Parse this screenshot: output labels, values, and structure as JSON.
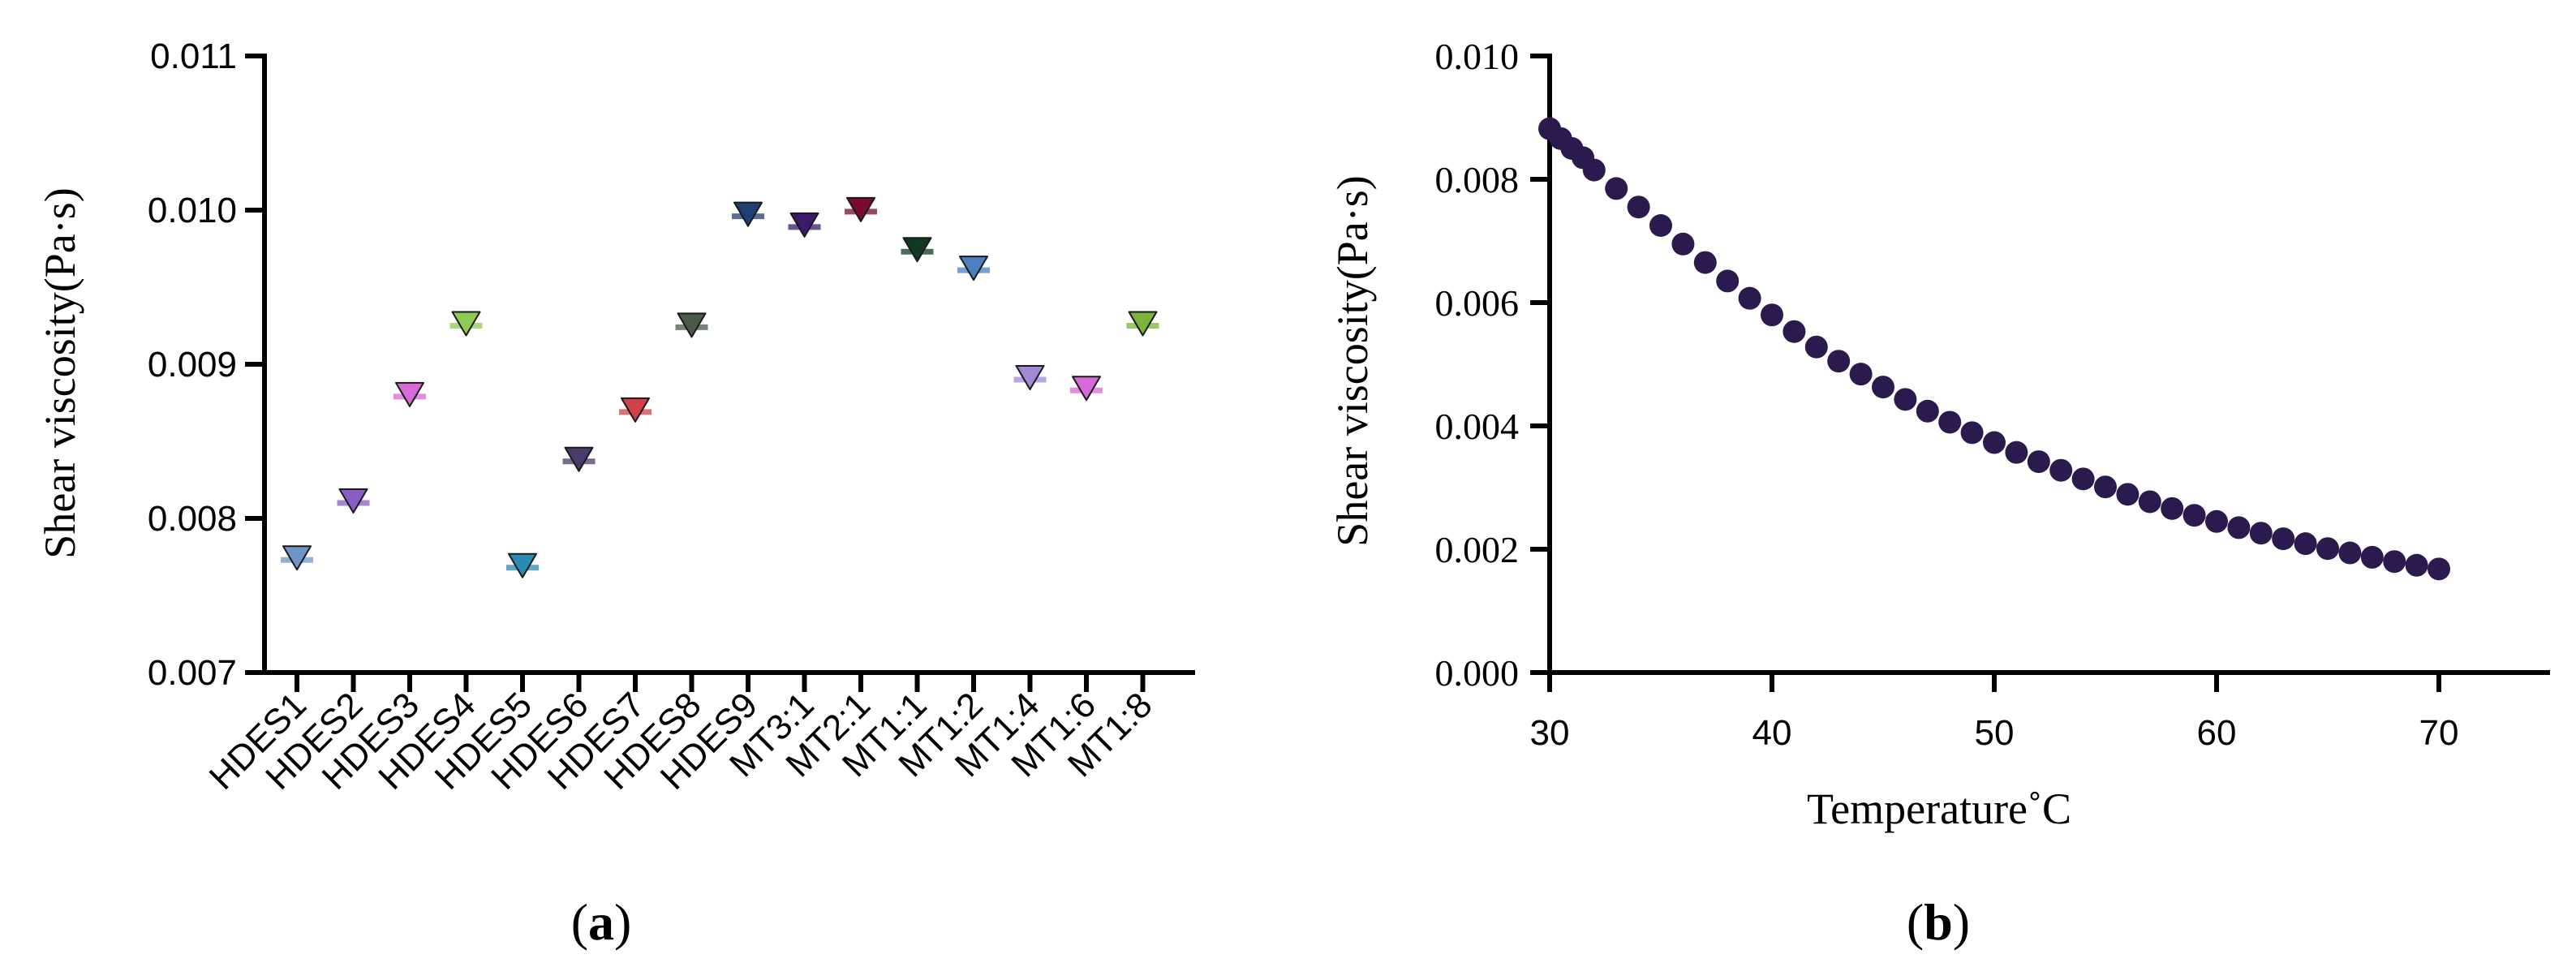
{
  "chart_data": [
    {
      "panel": "(a)",
      "panel_paren_open": "(",
      "panel_letter": "a",
      "panel_paren_close": ")",
      "type": "scatter",
      "ylabel": "Shear viscosity(Pa·s)",
      "ylim": [
        0.007,
        0.011
      ],
      "yticks": [
        "0.007",
        "0.008",
        "0.009",
        "0.010",
        "0.011"
      ],
      "categories": [
        "HDES1",
        "HDES2",
        "HDES3",
        "HDES4",
        "HDES5",
        "HDES6",
        "HDES7",
        "HDES8",
        "HDES9",
        "MT3:1",
        "MT2:1",
        "MT1:1",
        "MT1:2",
        "MT1:4",
        "MT1:6",
        "MT1:8"
      ],
      "values": [
        0.00773,
        0.0081,
        0.00879,
        0.00925,
        0.00768,
        0.00837,
        0.00869,
        0.00924,
        0.00996,
        0.00989,
        0.00999,
        0.00973,
        0.00961,
        0.0089,
        0.00883,
        0.00925
      ],
      "colors": [
        "#6f95c8",
        "#8a5cc4",
        "#d86ad8",
        "#8ecb55",
        "#2a8ab0",
        "#4a3a6a",
        "#cf4348",
        "#4a5a48",
        "#1d3f73",
        "#3b1a6b",
        "#7a0a30",
        "#0e3a22",
        "#4a7fc0",
        "#a08ad8",
        "#d86ad8",
        "#7ab43a"
      ],
      "marker": "triangle-down"
    },
    {
      "panel": "(b)",
      "panel_paren_open": "(",
      "panel_letter": "b",
      "panel_paren_close": ")",
      "type": "scatter",
      "xlabel": "Temperature˚C",
      "ylabel": "Shear viscosity(Pa·s)",
      "xlim": [
        30,
        75
      ],
      "ylim": [
        0,
        0.01
      ],
      "xticks": [
        "30",
        "40",
        "50",
        "60",
        "70"
      ],
      "yticks": [
        "0.000",
        "0.002",
        "0.004",
        "0.006",
        "0.008",
        "0.010"
      ],
      "color": "#2b1a4d",
      "x": [
        30.0,
        30.5,
        31.0,
        31.5,
        32.0,
        33.0,
        34.0,
        35.0,
        36.0,
        37.0,
        38.0,
        39.0,
        40.0,
        41.0,
        42.0,
        43.0,
        44.0,
        45.0,
        46.0,
        47.0,
        48.0,
        49.0,
        50.0,
        51.0,
        52.0,
        53.0,
        54.0,
        55.0,
        56.0,
        57.0,
        58.0,
        59.0,
        60.0,
        61.0,
        62.0,
        63.0,
        64.0,
        65.0,
        66.0,
        67.0,
        68.0,
        69.0,
        70.0
      ],
      "y": [
        0.00882,
        0.00866,
        0.0085,
        0.00835,
        0.00815,
        0.00785,
        0.00755,
        0.00725,
        0.00695,
        0.00665,
        0.00635,
        0.00607,
        0.0058,
        0.00553,
        0.00528,
        0.00505,
        0.00484,
        0.00463,
        0.00443,
        0.00424,
        0.00406,
        0.00389,
        0.00373,
        0.00357,
        0.00342,
        0.00328,
        0.00314,
        0.00301,
        0.00289,
        0.00277,
        0.00266,
        0.00255,
        0.00245,
        0.00235,
        0.00226,
        0.00217,
        0.00209,
        0.00201,
        0.00194,
        0.00187,
        0.0018,
        0.00174,
        0.00168
      ]
    }
  ]
}
